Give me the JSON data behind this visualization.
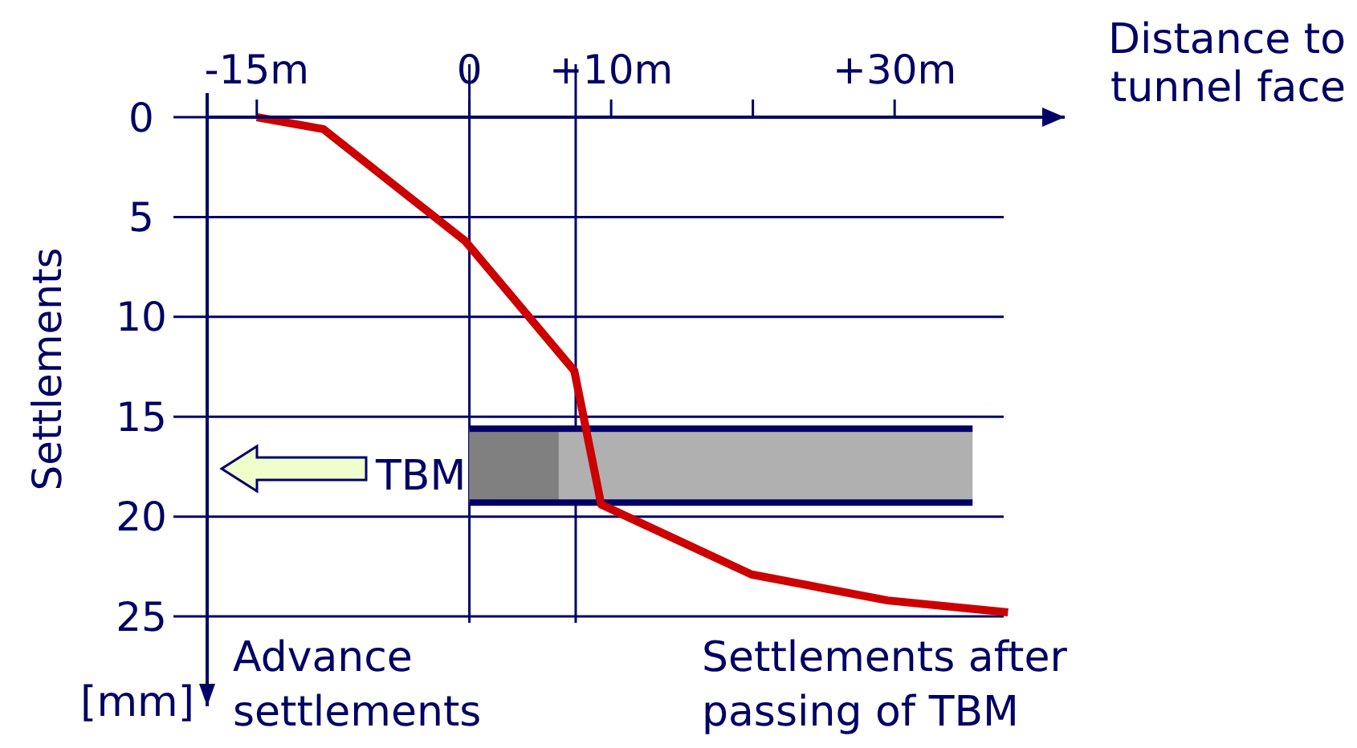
{
  "chart_data": {
    "type": "line",
    "xlabel": "Distance to tunnel face",
    "ylabel": "Settlements",
    "xlim": [
      -18.5,
      42
    ],
    "xticks": [
      {
        "value": -15,
        "label": "-15m"
      },
      0,
      {
        "value": 10,
        "label": "+10m"
      },
      {
        "value": 20,
        "label": null
      },
      {
        "value": 30,
        "label": "+30m"
      }
    ],
    "ylim": [
      29.5,
      0
    ],
    "yticks": [
      0,
      5,
      10,
      15,
      20,
      25
    ],
    "grid": "y",
    "marker": "none",
    "line_style": "solid",
    "series": [
      {
        "color": "#cc0000",
        "x": [
          -15,
          -10.3,
          -0.3,
          7.4,
          9.3,
          19.9,
          29.5,
          38
        ],
        "values": [
          0,
          0.6,
          6.2,
          12.7,
          19.4,
          22.9,
          24.2,
          24.8
        ]
      }
    ],
    "ref_lines": [
      {
        "axis": "x",
        "value": 0,
        "color": "#000066"
      },
      {
        "axis": "x",
        "value": 7.5,
        "color": "#000066"
      }
    ],
    "annotations": [
      "TBM",
      "Advance settlements",
      "Settlements after passing of TBM",
      "[mm]"
    ]
  }
}
